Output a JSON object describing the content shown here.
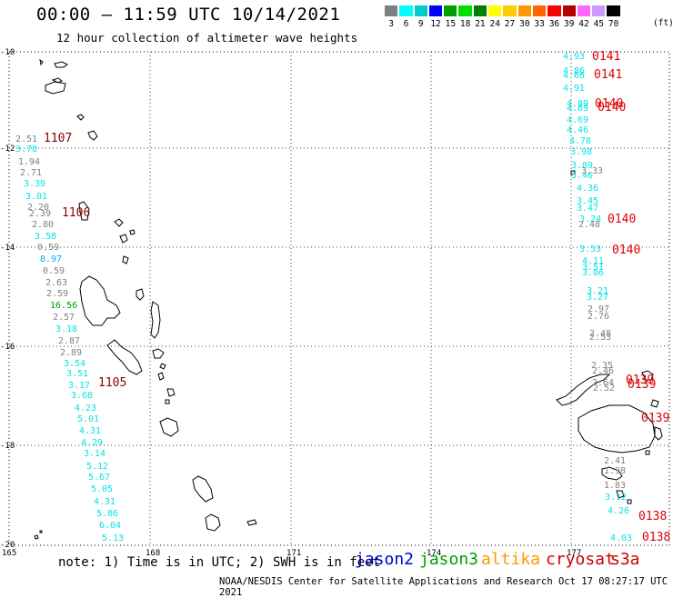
{
  "header": {
    "title": "00:00 – 11:59 UTC 10/14/2021",
    "subtitle": "12 hour collection of altimeter wave heights"
  },
  "legend": {
    "unit": "(ft)",
    "bins": [
      {
        "label": "3",
        "color": "#7f7f7f"
      },
      {
        "label": "6",
        "color": "#00ffff"
      },
      {
        "label": "9",
        "color": "#00cccc"
      },
      {
        "label": "12",
        "color": "#0000ff"
      },
      {
        "label": "15",
        "color": "#00a000"
      },
      {
        "label": "18",
        "color": "#00dd00"
      },
      {
        "label": "21",
        "color": "#007f00"
      },
      {
        "label": "24",
        "color": "#ffff00"
      },
      {
        "label": "27",
        "color": "#ffcc00"
      },
      {
        "label": "30",
        "color": "#ff9900"
      },
      {
        "label": "33",
        "color": "#ff6600"
      },
      {
        "label": "36",
        "color": "#ff0000"
      },
      {
        "label": "39",
        "color": "#b30000"
      },
      {
        "label": "42",
        "color": "#ff66ff"
      },
      {
        "label": "45",
        "color": "#cc99ff"
      },
      {
        "label": "70",
        "color": "#000000"
      }
    ]
  },
  "axes": {
    "lon_ticks": [
      "165",
      "168",
      "171",
      "174",
      "177"
    ],
    "lat_ticks": [
      "-10",
      "-12",
      "-14",
      "-16",
      "-18",
      "-20"
    ]
  },
  "tracks": [
    {
      "type": "wave",
      "value": "4.93",
      "color": "#00e5e5"
    },
    {
      "type": "time",
      "value": "0141",
      "color": "#e00000"
    },
    {
      "type": "wave",
      "value": "4.86",
      "color": "#00e5e5"
    },
    {
      "type": "wave",
      "value": "4.66",
      "color": "#00e5e5"
    },
    {
      "type": "time",
      "value": "0141",
      "color": "#e00000"
    },
    {
      "type": "wave",
      "value": "4.91",
      "color": "#00e5e5"
    },
    {
      "type": "wave",
      "value": "4.89",
      "color": "#00e5e5"
    },
    {
      "type": "wave",
      "value": "4.69",
      "color": "#00e5e5"
    },
    {
      "type": "time",
      "value": "0140",
      "color": "#e00000"
    },
    {
      "type": "time",
      "value": "0140",
      "color": "#e00000"
    },
    {
      "type": "wave",
      "value": "4.69",
      "color": "#00e5e5"
    },
    {
      "type": "wave",
      "value": "4.46",
      "color": "#00e5e5"
    },
    {
      "type": "wave",
      "value": "4.78",
      "color": "#00e5e5"
    },
    {
      "type": "wave",
      "value": "3.98",
      "color": "#00e5e5"
    },
    {
      "type": "wave",
      "value": "3.89",
      "color": "#00e5e5"
    },
    {
      "type": "wave",
      "value": "3.46",
      "color": "#00e5e5"
    },
    {
      "type": "wave",
      "value": "3.33",
      "color": "#808080"
    },
    {
      "type": "wave",
      "value": "4.36",
      "color": "#00e5e5"
    },
    {
      "type": "wave",
      "value": "3.45",
      "color": "#00e5e5"
    },
    {
      "type": "wave",
      "value": "3.47",
      "color": "#00e5e5"
    },
    {
      "type": "wave",
      "value": "3.24",
      "color": "#00e5e5"
    },
    {
      "type": "wave",
      "value": "2.48",
      "color": "#808080"
    },
    {
      "type": "time",
      "value": "0140",
      "color": "#e00000"
    },
    {
      "type": "wave",
      "value": "3.53",
      "color": "#00e5e5"
    },
    {
      "type": "time",
      "value": "0140",
      "color": "#e00000"
    },
    {
      "type": "wave",
      "value": "4.11",
      "color": "#00e5e5"
    },
    {
      "type": "wave",
      "value": "3.51",
      "color": "#00e5e5"
    },
    {
      "type": "wave",
      "value": "3.86",
      "color": "#00e5e5"
    },
    {
      "type": "wave",
      "value": "3.21",
      "color": "#00e5e5"
    },
    {
      "type": "wave",
      "value": "3.27",
      "color": "#00e5e5"
    },
    {
      "type": "wave",
      "value": "2.97",
      "color": "#808080"
    },
    {
      "type": "wave",
      "value": "2.76",
      "color": "#808080"
    },
    {
      "type": "wave",
      "value": "2.48",
      "color": "#808080"
    },
    {
      "type": "wave",
      "value": "2.53",
      "color": "#808080"
    },
    {
      "type": "wave",
      "value": "2.35",
      "color": "#808080"
    },
    {
      "type": "wave",
      "value": "2.46",
      "color": "#808080"
    },
    {
      "type": "wave",
      "value": "2.64",
      "color": "#808080"
    },
    {
      "type": "wave",
      "value": "2.52",
      "color": "#808080"
    },
    {
      "type": "time",
      "value": "0139",
      "color": "#e00000"
    },
    {
      "type": "time",
      "value": "0139",
      "color": "#e00000"
    },
    {
      "type": "time",
      "value": "0139",
      "color": "#e00000"
    },
    {
      "type": "wave",
      "value": "2.41",
      "color": "#808080"
    },
    {
      "type": "wave",
      "value": "1.98",
      "color": "#808080"
    },
    {
      "type": "wave",
      "value": "1.83",
      "color": "#808080"
    },
    {
      "type": "wave",
      "value": "3.12",
      "color": "#00e5e5"
    },
    {
      "type": "wave",
      "value": "4.26",
      "color": "#00e5e5"
    },
    {
      "type": "time",
      "value": "0138",
      "color": "#e00000"
    },
    {
      "type": "wave",
      "value": "4.03",
      "color": "#00e5e5"
    },
    {
      "type": "time",
      "value": "0138",
      "color": "#e00000"
    },
    {
      "type": "wave",
      "value": "2.51",
      "color": "#808080"
    },
    {
      "type": "time",
      "value": "1107",
      "color": "#8b0000"
    },
    {
      "type": "wave",
      "value": "3.78",
      "color": "#00e5e5"
    },
    {
      "type": "wave",
      "value": "1.94",
      "color": "#808080"
    },
    {
      "type": "wave",
      "value": "2.71",
      "color": "#808080"
    },
    {
      "type": "wave",
      "value": "3.39",
      "color": "#00e5e5"
    },
    {
      "type": "wave",
      "value": "3.01",
      "color": "#00e5e5"
    },
    {
      "type": "wave",
      "value": "2.20",
      "color": "#808080"
    },
    {
      "type": "wave",
      "value": "2.39",
      "color": "#808080"
    },
    {
      "type": "time",
      "value": "1106",
      "color": "#8b0000"
    },
    {
      "type": "wave",
      "value": "2.80",
      "color": "#808080"
    },
    {
      "type": "wave",
      "value": "3.58",
      "color": "#00e5e5"
    },
    {
      "type": "wave",
      "value": "0.59",
      "color": "#808080"
    },
    {
      "type": "wave",
      "value": "8.97",
      "color": "#00aaff"
    },
    {
      "type": "wave",
      "value": "0.59",
      "color": "#808080"
    },
    {
      "type": "wave",
      "value": "2.63",
      "color": "#808080"
    },
    {
      "type": "wave",
      "value": "2.59",
      "color": "#808080"
    },
    {
      "type": "wave",
      "value": "16.56",
      "color": "#00a000"
    },
    {
      "type": "wave",
      "value": "2.57",
      "color": "#808080"
    },
    {
      "type": "wave",
      "value": "3.18",
      "color": "#00e5e5"
    },
    {
      "type": "wave",
      "value": "2.87",
      "color": "#808080"
    },
    {
      "type": "wave",
      "value": "2.89",
      "color": "#808080"
    },
    {
      "type": "wave",
      "value": "3.54",
      "color": "#00e5e5"
    },
    {
      "type": "wave",
      "value": "3.51",
      "color": "#00e5e5"
    },
    {
      "type": "time",
      "value": "1105",
      "color": "#8b0000"
    },
    {
      "type": "wave",
      "value": "3.17",
      "color": "#00e5e5"
    },
    {
      "type": "wave",
      "value": "3.68",
      "color": "#00e5e5"
    },
    {
      "type": "wave",
      "value": "4.23",
      "color": "#00e5e5"
    },
    {
      "type": "wave",
      "value": "5.01",
      "color": "#00e5e5"
    },
    {
      "type": "wave",
      "value": "4.31",
      "color": "#00e5e5"
    },
    {
      "type": "wave",
      "value": "4.29",
      "color": "#00e5e5"
    },
    {
      "type": "wave",
      "value": "3.14",
      "color": "#00e5e5"
    },
    {
      "type": "wave",
      "value": "5.12",
      "color": "#00e5e5"
    },
    {
      "type": "wave",
      "value": "5.67",
      "color": "#00e5e5"
    },
    {
      "type": "wave",
      "value": "5.05",
      "color": "#00e5e5"
    },
    {
      "type": "wave",
      "value": "4.31",
      "color": "#00e5e5"
    },
    {
      "type": "wave",
      "value": "5.86",
      "color": "#00e5e5"
    },
    {
      "type": "wave",
      "value": "6.04",
      "color": "#00e5e5"
    },
    {
      "type": "wave",
      "value": "5.13",
      "color": "#00e5e5"
    }
  ],
  "footer": {
    "note": "note: 1) Time is in UTC; 2) SWH is in feet",
    "satellites": [
      {
        "name": "jason2",
        "color": "#0000cc"
      },
      {
        "name": "jason3",
        "color": "#00a000"
      },
      {
        "name": "altika",
        "color": "#ff9900"
      },
      {
        "name": "cryosat",
        "color": "#cc0000"
      },
      {
        "name": "s3a",
        "color": "#cc0000"
      }
    ],
    "credit": "NOAA/NESDIS Center for Satellite Applications and Research   Oct 17 08:27:17 UTC 2021"
  }
}
